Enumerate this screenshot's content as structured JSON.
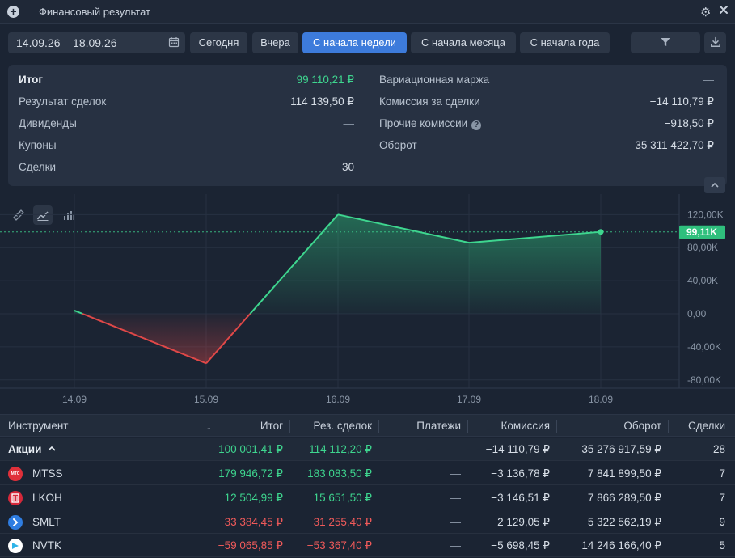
{
  "window": {
    "title": "Финансовый результат"
  },
  "toolbar": {
    "date_range": "14.09.26 – 18.09.26",
    "buttons": [
      "Сегодня",
      "Вчера",
      "С начала недели",
      "С начала месяца",
      "С начала года"
    ],
    "active_button": "С начала недели"
  },
  "summary": {
    "left": [
      {
        "label": "Итог",
        "value": "99 110,21 ₽"
      },
      {
        "label": "Результат сделок",
        "value": "114 139,50 ₽"
      },
      {
        "label": "Дивиденды",
        "value": "—"
      },
      {
        "label": "Купоны",
        "value": "—"
      },
      {
        "label": "Сделки",
        "value": "30"
      }
    ],
    "right": [
      {
        "label": "Вариационная маржа",
        "value": "—"
      },
      {
        "label": "Комиссия за сделки",
        "value": "−14 110,79 ₽"
      },
      {
        "label": "Прочие комиссии",
        "value": "−918,50 ₽"
      },
      {
        "label": "Оборот",
        "value": "35 311 422,70 ₽"
      }
    ]
  },
  "chart_data": {
    "type": "area",
    "categories": [
      "14.09",
      "15.09",
      "16.09",
      "17.09",
      "18.09"
    ],
    "values": [
      4,
      -60,
      120,
      86,
      99.11
    ],
    "ylim": [
      -90,
      135
    ],
    "y_ticks": [
      120,
      80,
      40,
      0,
      -40,
      -80
    ],
    "y_tick_labels": [
      "120,00K",
      "80,00K",
      "40,00K",
      "0,00",
      "-40,00K",
      "-80,00K"
    ],
    "current_value_label": "99,11K",
    "colors": {
      "positive": "#3ed68f",
      "negative": "#e04848"
    }
  },
  "table": {
    "headers": {
      "instrument": "Инструмент",
      "sort": "↓",
      "total": "Итог",
      "deals_result": "Рез. сделок",
      "payments": "Платежи",
      "commission": "Комиссия",
      "turnover": "Оборот",
      "deals": "Сделки"
    },
    "group": {
      "name": "Акции",
      "total": "100 001,41 ₽",
      "deals_result": "114 112,20 ₽",
      "payments": "—",
      "commission": "−14 110,79 ₽",
      "turnover": "35 276 917,59 ₽",
      "deals": "28"
    },
    "rows": [
      {
        "ticker": "MTSS",
        "total": "179 946,72 ₽",
        "deals_result": "183 083,50 ₽",
        "payments": "—",
        "commission": "−3 136,78 ₽",
        "turnover": "7 841 899,50 ₽",
        "deals": "7",
        "sign": "pos",
        "icon_color": "#e0303a",
        "icon_text": "МТС"
      },
      {
        "ticker": "LKOH",
        "total": "12 504,99 ₽",
        "deals_result": "15 651,50 ₽",
        "payments": "—",
        "commission": "−3 146,51 ₽",
        "turnover": "7 866 289,50 ₽",
        "deals": "7",
        "sign": "pos",
        "icon_color": "#d6283a",
        "icon_text": ""
      },
      {
        "ticker": "SMLT",
        "total": "−33 384,45 ₽",
        "deals_result": "−31 255,40 ₽",
        "payments": "—",
        "commission": "−2 129,05 ₽",
        "turnover": "5 322 562,19 ₽",
        "deals": "9",
        "sign": "neg",
        "icon_color": "#2f7de1",
        "icon_text": ""
      },
      {
        "ticker": "NVTK",
        "total": "−59 065,85 ₽",
        "deals_result": "−53 367,40 ₽",
        "payments": "—",
        "commission": "−5 698,45 ₽",
        "turnover": "14 246 166,40 ₽",
        "deals": "5",
        "sign": "neg",
        "icon_color": "#ffffff",
        "icon_text": ""
      }
    ]
  }
}
